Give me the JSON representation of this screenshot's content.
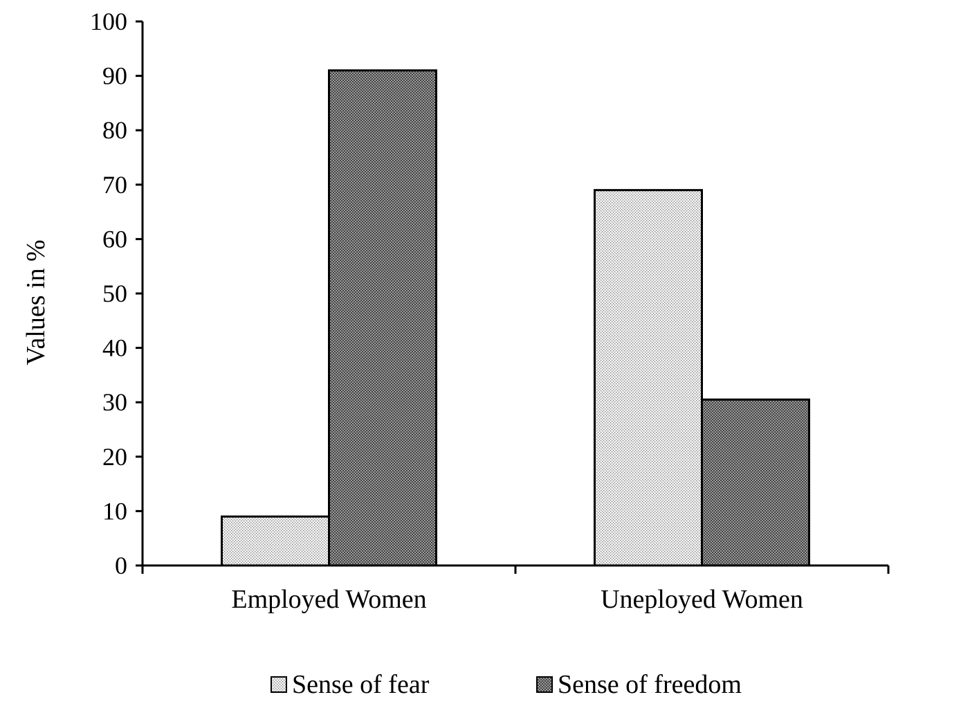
{
  "chart_data": {
    "type": "bar",
    "categories": [
      "Employed Women",
      "Uneployed Women"
    ],
    "series": [
      {
        "name": "Sense of fear",
        "values": [
          9,
          69
        ],
        "pattern": "dots"
      },
      {
        "name": "Sense of freedom",
        "values": [
          91,
          30.5
        ],
        "pattern": "crosshatch"
      }
    ],
    "ylabel": "Values in %",
    "ylim": [
      0,
      100
    ],
    "yticks": [
      0,
      10,
      20,
      30,
      40,
      50,
      60,
      70,
      80,
      90,
      100
    ],
    "grid": false,
    "legend": "bottom",
    "colors": {
      "axis": "#000000",
      "bar_outline": "#000000",
      "fear_fill": "#e6e6e6",
      "freedom_fill": "#8c8c8c"
    }
  }
}
